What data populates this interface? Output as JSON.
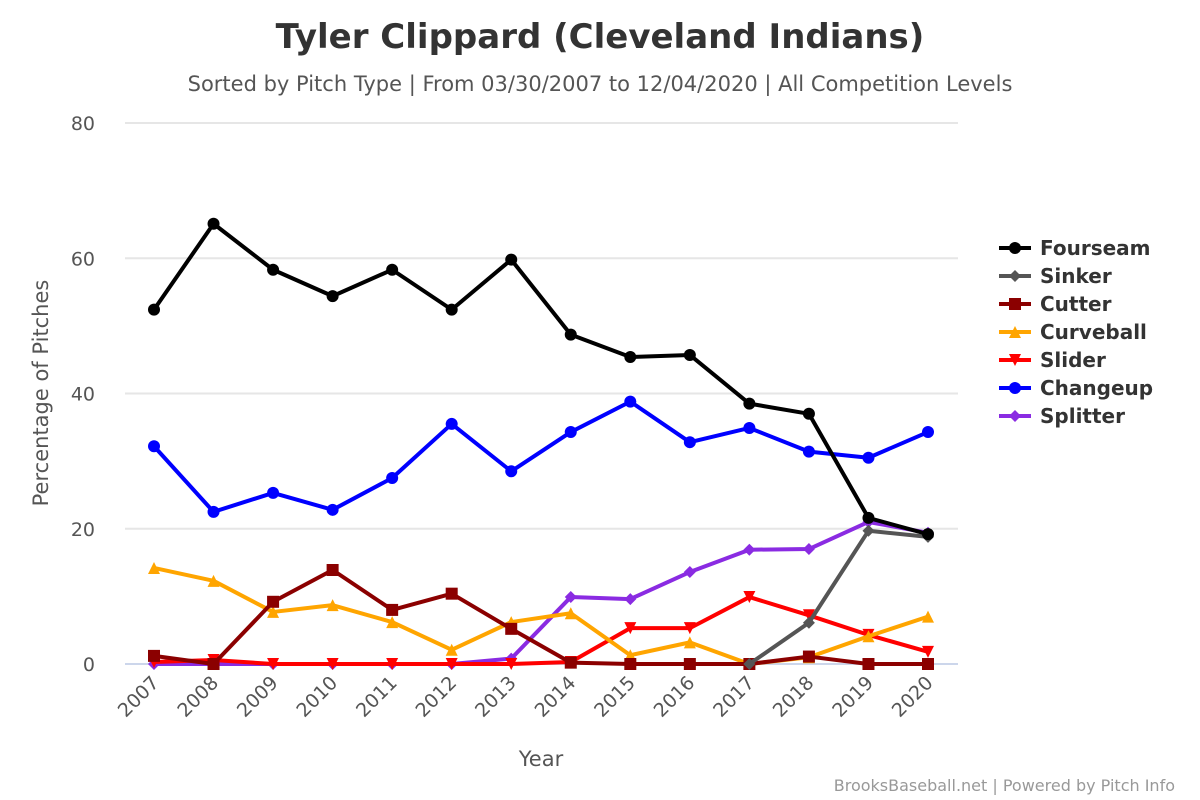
{
  "chart_data": {
    "type": "line",
    "title": "Tyler Clippard (Cleveland Indians)",
    "subtitle": "Sorted by Pitch Type | From 03/30/2007 to 12/04/2020 | All Competition Levels",
    "xlabel": "Year",
    "ylabel": "Percentage of Pitches",
    "ylim": [
      0,
      80
    ],
    "yticks": [
      "0",
      "20",
      "40",
      "60",
      "80"
    ],
    "grid": true,
    "legend_position": "right",
    "credits": "BrooksBaseball.net | Powered by Pitch Info",
    "categories": [
      "2007",
      "2008",
      "2009",
      "2010",
      "2011",
      "2012",
      "2013",
      "2014",
      "2015",
      "2016",
      "2017",
      "2018",
      "2019",
      "2020"
    ],
    "series": [
      {
        "name": "Fourseam",
        "color": "#000000",
        "marker": "circle",
        "values": [
          52.4,
          65.1,
          58.3,
          54.4,
          58.3,
          52.4,
          59.8,
          48.7,
          45.4,
          45.7,
          38.5,
          37.0,
          21.6,
          19.2
        ]
      },
      {
        "name": "Sinker",
        "color": "#555555",
        "marker": "diamond",
        "values": [
          null,
          null,
          null,
          null,
          null,
          null,
          null,
          null,
          null,
          null,
          0.0,
          6.1,
          19.7,
          18.8
        ]
      },
      {
        "name": "Cutter",
        "color": "#8b0000",
        "marker": "square",
        "values": [
          1.2,
          0.0,
          9.2,
          13.9,
          8.0,
          10.4,
          5.2,
          0.2,
          0.0,
          0.0,
          0.0,
          1.1,
          0.0,
          0.0
        ]
      },
      {
        "name": "Curveball",
        "color": "#ffa500",
        "marker": "triangle",
        "values": [
          14.2,
          12.3,
          7.7,
          8.7,
          6.2,
          2.1,
          6.2,
          7.5,
          1.3,
          3.2,
          0.0,
          1.0,
          4.1,
          7.0
        ]
      },
      {
        "name": "Slider",
        "color": "#ff0000",
        "marker": "triangle-down",
        "values": [
          0.3,
          0.6,
          0.0,
          0.0,
          0.0,
          0.0,
          0.0,
          0.3,
          5.3,
          5.3,
          9.9,
          7.2,
          4.3,
          1.8
        ]
      },
      {
        "name": "Changeup",
        "color": "#0000ff",
        "marker": "circle",
        "values": [
          32.2,
          22.5,
          25.3,
          22.8,
          27.5,
          35.5,
          28.5,
          34.3,
          38.8,
          32.8,
          34.9,
          31.4,
          30.5,
          34.3
        ]
      },
      {
        "name": "Splitter",
        "color": "#8a2be2",
        "marker": "diamond",
        "values": [
          0.0,
          0.0,
          0.0,
          0.0,
          0.0,
          0.0,
          0.8,
          9.9,
          9.6,
          13.6,
          16.9,
          17.0,
          21.0,
          19.4
        ]
      }
    ]
  }
}
